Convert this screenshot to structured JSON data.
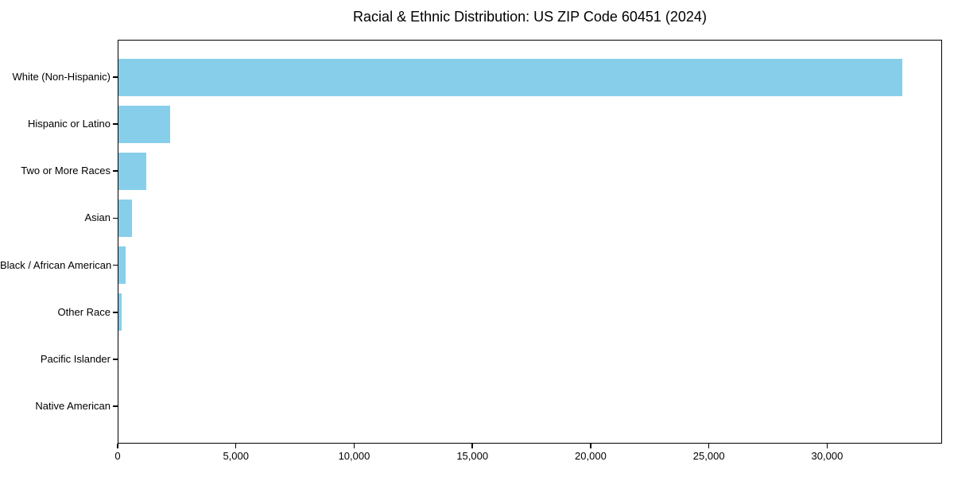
{
  "title": "Racial & Ethnic Distribution: US ZIP Code 60451 (2024)",
  "chart_data": {
    "type": "bar",
    "orientation": "horizontal",
    "title": "Racial & Ethnic Distribution: US ZIP Code 60451 (2024)",
    "xlabel": "",
    "ylabel": "",
    "categories": [
      "White (Non-Hispanic)",
      "Hispanic or Latino",
      "Two or More Races",
      "Asian",
      "Black / African American",
      "Other Race",
      "Pacific Islander",
      "Native American"
    ],
    "values": [
      33200,
      2180,
      1170,
      570,
      300,
      135,
      0,
      0
    ],
    "xlim": [
      0,
      34860
    ],
    "x_ticks": [
      0,
      5000,
      10000,
      15000,
      20000,
      25000,
      30000
    ],
    "x_tick_labels": [
      "0",
      "5,000",
      "10,000",
      "15,000",
      "20,000",
      "25,000",
      "30,000"
    ],
    "bar_color": "#87CEEB",
    "background_color": "#ffffff",
    "grid": false,
    "legend": "none"
  }
}
